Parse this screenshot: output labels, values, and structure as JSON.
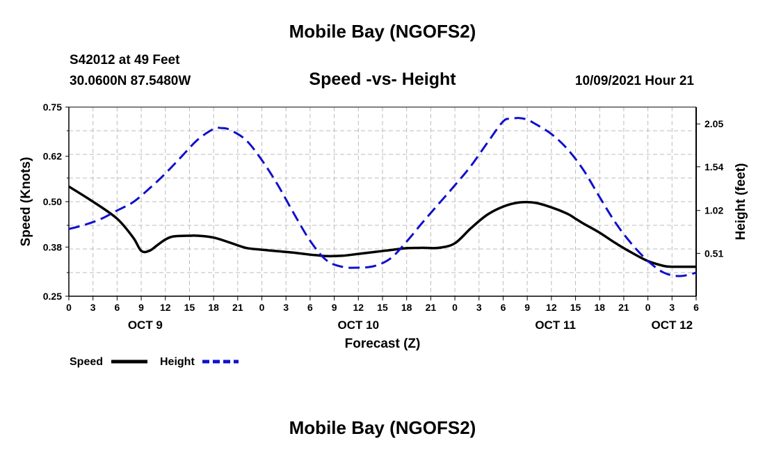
{
  "header": {
    "title": "Mobile Bay (NGOFS2)",
    "station": "S42012 at 49 Feet",
    "coords": "30.0600N  87.5480W",
    "subtitle": "Speed -vs- Height",
    "datetime": "10/09/2021 Hour 21"
  },
  "footer": {
    "title": "Mobile Bay (NGOFS2)"
  },
  "colors": {
    "speed": "#000000",
    "height": "#1010cc",
    "grid": "#bbbbbb"
  },
  "chart_data": {
    "type": "line",
    "title": "Speed -vs- Height",
    "xlabel": "Forecast (Z)",
    "ylabel": "Speed (Knots)",
    "y2label": "Height (feet)",
    "xlim": [
      0,
      78
    ],
    "ylim": [
      0.25,
      0.75
    ],
    "y2lim": [
      0.0,
      2.25
    ],
    "grid": true,
    "x_tick_values": [
      0,
      3,
      6,
      9,
      12,
      15,
      18,
      21,
      24,
      27,
      30,
      33,
      36,
      39,
      42,
      45,
      48,
      51,
      54,
      57,
      60,
      63,
      66,
      69,
      72,
      75,
      78
    ],
    "x_tick_labels": [
      "0",
      "3",
      "6",
      "9",
      "12",
      "15",
      "18",
      "21",
      "0",
      "3",
      "6",
      "9",
      "12",
      "15",
      "18",
      "21",
      "0",
      "3",
      "6",
      "9",
      "12",
      "15",
      "18",
      "21",
      "0",
      "3",
      "6"
    ],
    "date_labels": [
      {
        "label": "OCT 9",
        "x": 9.5
      },
      {
        "label": "OCT 10",
        "x": 36
      },
      {
        "label": "OCT 11",
        "x": 60.5
      },
      {
        "label": "OCT 12",
        "x": 75
      }
    ],
    "y_ticks": [
      0.25,
      0.38,
      0.5,
      0.62,
      0.75
    ],
    "y_tick_labels": [
      "0.25",
      "0.38",
      "0.50",
      "0.62",
      "0.75"
    ],
    "y2_ticks": [
      0.51,
      1.02,
      1.54,
      2.05
    ],
    "y2_tick_labels": [
      "0.51",
      "1.02",
      "1.54",
      "2.05"
    ],
    "legend": {
      "placement": "bottom-left",
      "entries": [
        "Speed",
        "Height"
      ]
    },
    "series": [
      {
        "name": "Speed",
        "axis": "left",
        "style": "solid",
        "x": [
          0,
          3,
          6,
          8,
          9,
          10,
          11,
          12,
          13,
          15,
          16,
          18,
          20,
          22,
          24,
          26,
          28,
          30,
          31,
          32,
          34,
          36,
          38,
          40,
          42,
          44,
          46,
          48,
          50,
          52,
          54,
          56,
          58,
          60,
          62,
          63,
          64,
          66,
          68,
          70,
          72,
          74,
          75,
          76,
          78
        ],
        "y": [
          0.54,
          0.5,
          0.455,
          0.405,
          0.37,
          0.37,
          0.385,
          0.4,
          0.408,
          0.41,
          0.41,
          0.405,
          0.392,
          0.378,
          0.373,
          0.369,
          0.365,
          0.36,
          0.358,
          0.356,
          0.357,
          0.362,
          0.367,
          0.372,
          0.377,
          0.378,
          0.378,
          0.39,
          0.43,
          0.465,
          0.487,
          0.498,
          0.497,
          0.485,
          0.468,
          0.455,
          0.442,
          0.418,
          0.39,
          0.365,
          0.343,
          0.33,
          0.328,
          0.328,
          0.328
        ]
      },
      {
        "name": "Height",
        "axis": "right",
        "style": "dashed",
        "x": [
          0,
          2,
          4,
          6,
          8,
          10,
          12,
          14,
          16,
          18,
          19,
          20,
          22,
          24,
          26,
          28,
          30,
          32,
          34,
          36,
          38,
          40,
          42,
          44,
          46,
          48,
          50,
          52,
          54,
          55,
          56,
          57,
          58,
          60,
          62,
          64,
          66,
          68,
          70,
          72,
          74,
          76,
          78
        ],
        "y": [
          0.8,
          0.85,
          0.92,
          1.02,
          1.12,
          1.28,
          1.46,
          1.66,
          1.86,
          1.99,
          2.0,
          1.98,
          1.86,
          1.62,
          1.32,
          0.98,
          0.66,
          0.43,
          0.35,
          0.34,
          0.36,
          0.45,
          0.65,
          0.88,
          1.1,
          1.32,
          1.55,
          1.82,
          2.08,
          2.11,
          2.12,
          2.1,
          2.05,
          1.93,
          1.75,
          1.5,
          1.18,
          0.87,
          0.62,
          0.42,
          0.28,
          0.24,
          0.28
        ]
      }
    ]
  }
}
